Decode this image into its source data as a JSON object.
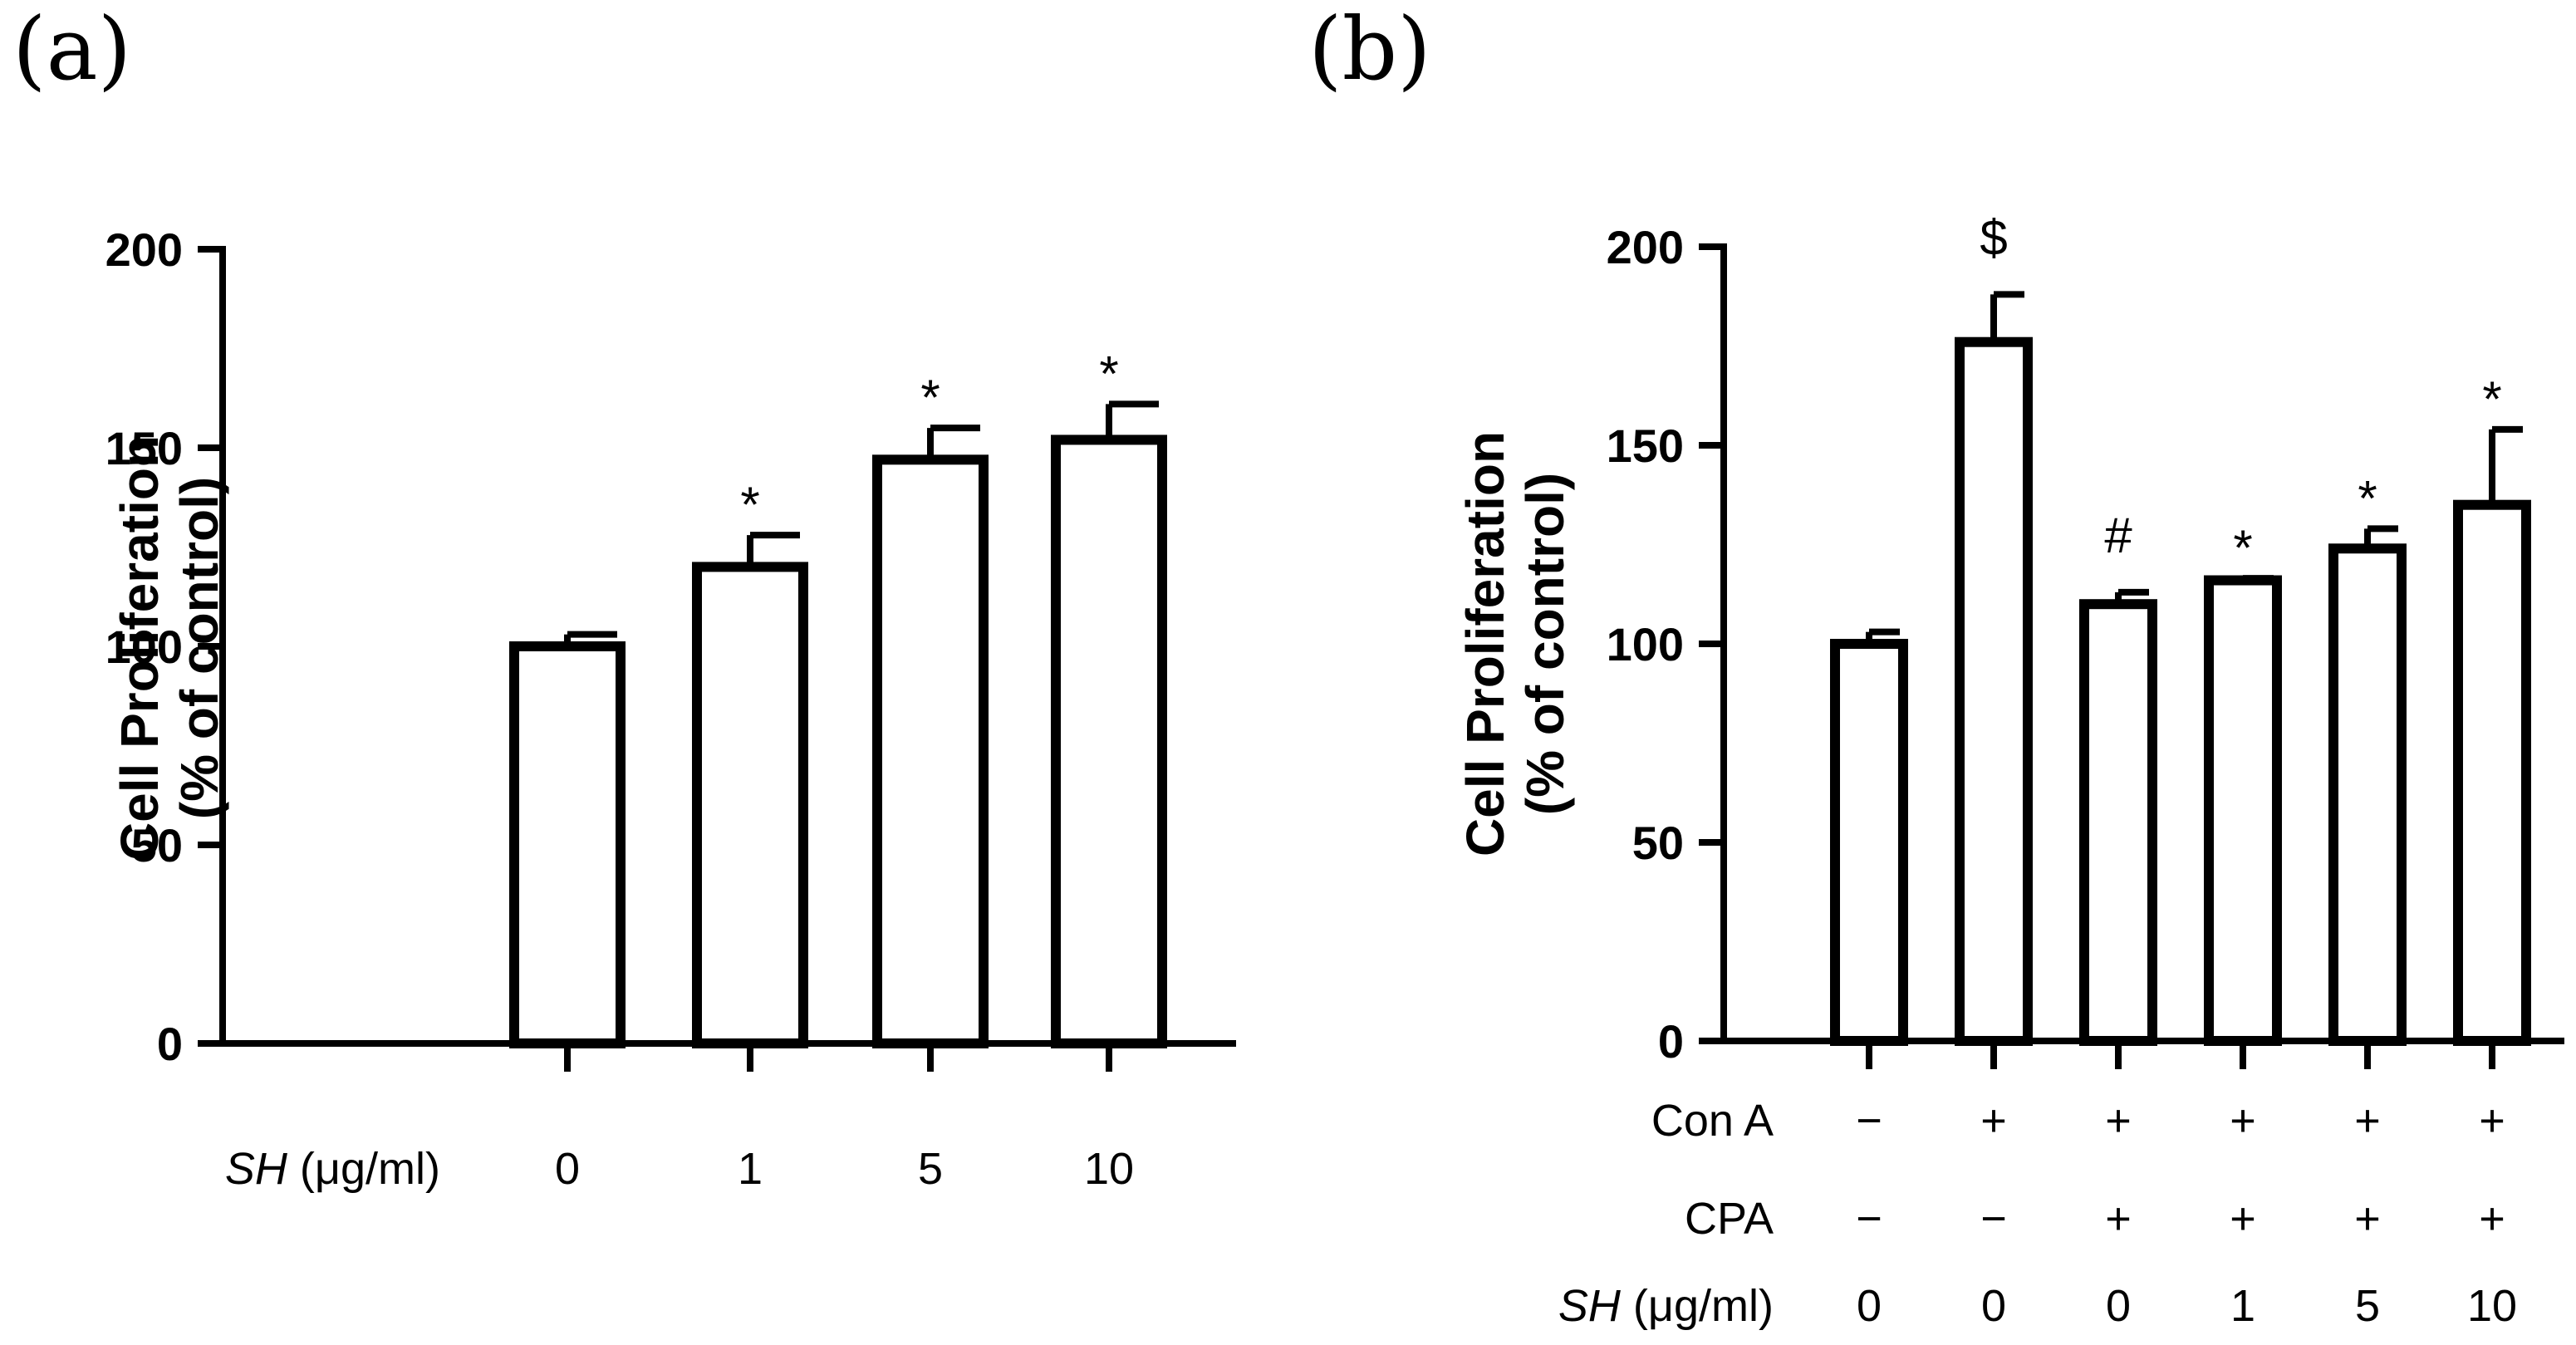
{
  "chart_data": [
    {
      "panel_label": "(a)",
      "type": "bar",
      "ylabel": [
        "Cell Proliferation",
        "(% of control)"
      ],
      "ylim": [
        0,
        200
      ],
      "yticks": [
        "0",
        "50",
        "100",
        "150",
        "200"
      ],
      "row_labels": [
        {
          "italic": "SH",
          "rest": " (μg/ml)"
        }
      ],
      "rows": [
        [
          "0",
          "1",
          "5",
          "10"
        ]
      ],
      "values": [
        100,
        120,
        147,
        152
      ],
      "errors": [
        3,
        8,
        8,
        9
      ],
      "annotations": [
        "",
        "*",
        "*",
        "*"
      ]
    },
    {
      "panel_label": "(b)",
      "type": "bar",
      "ylabel": [
        "Cell Proliferation",
        "(% of control)"
      ],
      "ylim": [
        0,
        200
      ],
      "yticks": [
        "0",
        "50",
        "100",
        "150",
        "200"
      ],
      "row_labels": [
        {
          "italic": "",
          "rest": "Con A"
        },
        {
          "italic": "",
          "rest": "CPA"
        },
        {
          "italic": "SH",
          "rest": " (μg/ml)"
        }
      ],
      "rows": [
        [
          "−",
          "+",
          "+",
          "+",
          "+",
          "+"
        ],
        [
          "−",
          "−",
          "+",
          "+",
          "+",
          "+"
        ],
        [
          "0",
          "0",
          "0",
          "1",
          "5",
          "10"
        ]
      ],
      "values": [
        100,
        176,
        110,
        116,
        124,
        135
      ],
      "errors": [
        3,
        12,
        3,
        0.5,
        5,
        19
      ],
      "annotations": [
        "",
        "$",
        "#",
        "*",
        "*",
        "*"
      ]
    }
  ]
}
